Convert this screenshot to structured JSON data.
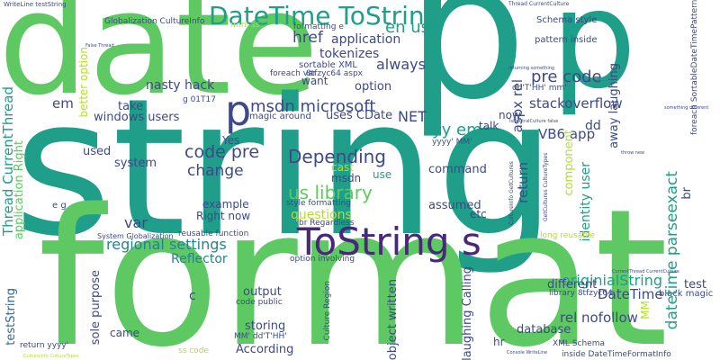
{
  "colors": {
    "teal": "#1f9e89",
    "green": "#5ec962",
    "navy": "#3e4989",
    "purple": "#482878",
    "slate": "#31688e",
    "lime": "#b5de2b",
    "cyan": "#26828e",
    "yellow": "#fde725",
    "seafoam": "#35b779"
  },
  "words": [
    {
      "text": "date"
    },
    {
      "text": "p"
    },
    {
      "text": "string"
    },
    {
      "text": "p"
    },
    {
      "text": "format"
    },
    {
      "text": "DateTime ToString"
    },
    {
      "text": "ToString s"
    },
    {
      "text": "code pre"
    },
    {
      "text": "Depending"
    },
    {
      "text": "msdn microsoft"
    },
    {
      "text": "us library"
    },
    {
      "text": "regional settings"
    },
    {
      "text": "Reflector"
    },
    {
      "text": "change"
    },
    {
      "text": "pre code"
    },
    {
      "text": "en us"
    },
    {
      "text": "href"
    },
    {
      "text": "application"
    },
    {
      "text": "tokenizes"
    },
    {
      "text": "always"
    },
    {
      "text": "stackoverflow"
    },
    {
      "text": "VB6 app"
    },
    {
      "text": "option"
    },
    {
      "text": "yy em"
    },
    {
      "text": "NET"
    },
    {
      "text": "uses CDate"
    },
    {
      "text": "em"
    },
    {
      "text": "take"
    },
    {
      "text": "windows users"
    },
    {
      "text": "nasty hack"
    },
    {
      "text": "Yes"
    },
    {
      "text": "used"
    },
    {
      "text": "system"
    },
    {
      "text": "var"
    },
    {
      "text": "example"
    },
    {
      "text": "Right now"
    },
    {
      "text": "questions"
    },
    {
      "text": "msdn"
    },
    {
      "text": "cast"
    },
    {
      "text": "command"
    },
    {
      "text": "use"
    },
    {
      "text": "assumed"
    },
    {
      "text": "etc"
    },
    {
      "text": "dd"
    },
    {
      "text": "now"
    },
    {
      "text": "talk"
    },
    {
      "text": "originialString"
    },
    {
      "text": "DateTime"
    },
    {
      "text": "rel nofollow"
    },
    {
      "text": "database"
    },
    {
      "text": "different"
    },
    {
      "text": "output"
    },
    {
      "text": "storing"
    },
    {
      "text": "According"
    },
    {
      "text": "came"
    },
    {
      "text": "hr"
    },
    {
      "text": "c"
    },
    {
      "text": "test"
    },
    {
      "text": "black magic"
    },
    {
      "text": "Thread CurrentThread"
    },
    {
      "text": "application Right"
    },
    {
      "text": "testString"
    },
    {
      "text": "sole purpose"
    },
    {
      "text": "object written"
    },
    {
      "text": "laughing Calling"
    },
    {
      "text": "datetime parseexact"
    },
    {
      "text": "identity user"
    },
    {
      "text": "return"
    },
    {
      "text": "aspx rel"
    },
    {
      "text": "away laughing"
    },
    {
      "text": "component"
    },
    {
      "text": "br"
    },
    {
      "text": "MM"
    },
    {
      "text": "Culture Region"
    },
    {
      "text": "better option"
    },
    {
      "text": "want"
    },
    {
      "text": "sortable XML"
    },
    {
      "text": "foreach var"
    },
    {
      "text": "8tfzyc64 aspx"
    },
    {
      "text": "Globalization CultureInfo"
    },
    {
      "text": "formatting e"
    },
    {
      "text": "Schema style"
    },
    {
      "text": "pattern inside"
    },
    {
      "text": "magic around"
    },
    {
      "text": "dd'T'HH' mm'"
    },
    {
      "text": "yyyy' MM'"
    },
    {
      "text": "reusable function"
    },
    {
      "text": "option involving"
    },
    {
      "text": "style formatting"
    },
    {
      "text": "br Regardless"
    },
    {
      "text": "long reusable"
    },
    {
      "text": "library 8tfzyc64"
    },
    {
      "text": "XML Schema"
    },
    {
      "text": "inside DateTimeFormatInfo"
    },
    {
      "text": "code public"
    },
    {
      "text": "MM' dd'T'HH'"
    },
    {
      "text": "ss code"
    },
    {
      "text": "return yyyy'"
    },
    {
      "text": "System Globalization"
    },
    {
      "text": "e g"
    },
    {
      "text": "g 01T17"
    },
    {
      "text": "WriteLine testString"
    },
    {
      "text": "Thread CurrentCulture"
    },
    {
      "text": "foreach SortableDateTimePattern"
    },
    {
      "text": "CultureInfo GetCultures"
    },
    {
      "text": "GetCultures CultureTypes"
    },
    {
      "text": "CultureInfo CultureTypes"
    },
    {
      "text": "CurrentThread CurrentCulture"
    },
    {
      "text": "Console WriteLine"
    },
    {
      "text": "throw new"
    },
    {
      "text": "IsNeutralCulture false"
    },
    {
      "text": "False Thread"
    },
    {
      "text": "mm' ss"
    },
    {
      "text": "returning something"
    },
    {
      "text": "something different"
    }
  ]
}
